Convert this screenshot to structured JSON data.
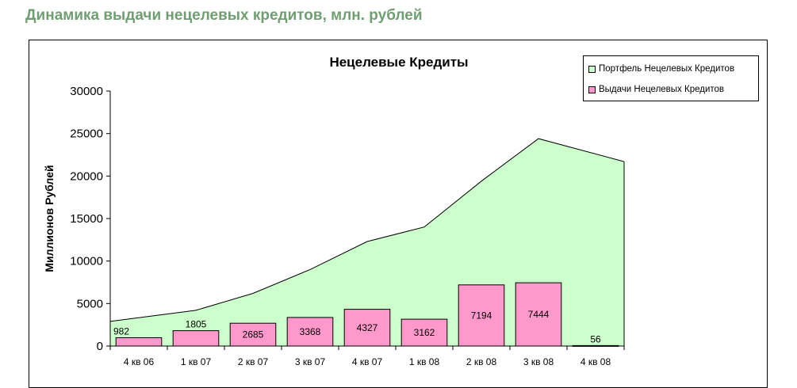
{
  "page": {
    "heading": "Динамика выдачи нецелевых кредитов, млн. рублей"
  },
  "colors": {
    "heading": "#6f9e72",
    "area_fill": "#ccffcc",
    "bar_fill": "#ff99cc",
    "axis": "#000000"
  },
  "chart_data": {
    "type": "bar",
    "title": "Нецелевые Кредиты",
    "ylabel": "Миллионов Рублей",
    "xlabel": "",
    "categories": [
      "4 кв 06",
      "1 кв 07",
      "2 кв 07",
      "3 кв 07",
      "4 кв 07",
      "1 кв 08",
      "2 кв 08",
      "3 кв 08",
      "4 кв 08"
    ],
    "ylim": [
      0,
      30000
    ],
    "yticks": [
      "0",
      "5000",
      "10000",
      "15000",
      "20000",
      "25000",
      "30000"
    ],
    "grid": false,
    "legend_position": "top-right",
    "series": [
      {
        "name": "Портфель Нецелевых Кредитов",
        "type": "area",
        "color": "#ccffcc",
        "values": [
          2900,
          4200,
          6200,
          9000,
          12300,
          14000,
          19400,
          24400,
          21700
        ]
      },
      {
        "name": "Выдачи Нецелевых Кредитов",
        "type": "bar",
        "color": "#ff99cc",
        "values": [
          982,
          1805,
          2685,
          3368,
          4327,
          3162,
          7194,
          7444,
          56
        ],
        "data_labels": [
          "982",
          "1805",
          "2685",
          "3368",
          "4327",
          "3162",
          "7194",
          "7444",
          "56"
        ]
      }
    ]
  }
}
